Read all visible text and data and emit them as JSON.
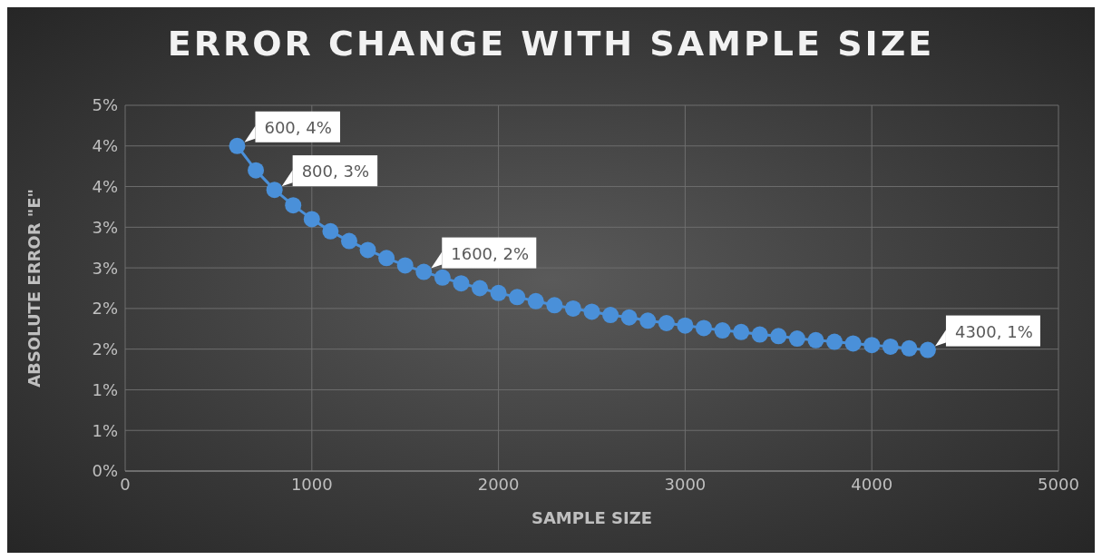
{
  "chart_data": {
    "type": "line",
    "title": "ERROR CHANGE WITH SAMPLE SIZE",
    "xlabel": "SAMPLE SIZE",
    "ylabel": "ABSOLUTE ERROR \"E\"",
    "x": [
      600,
      700,
      800,
      900,
      1000,
      1100,
      1200,
      1300,
      1400,
      1500,
      1600,
      1700,
      1800,
      1900,
      2000,
      2100,
      2200,
      2300,
      2400,
      2500,
      2600,
      2700,
      2800,
      2900,
      3000,
      3100,
      3200,
      3300,
      3400,
      3500,
      3600,
      3700,
      3800,
      3900,
      4000,
      4100,
      4200,
      4300
    ],
    "series": [
      {
        "color": "#4a90d9",
        "values": [
          4.0,
          3.7,
          3.46,
          3.27,
          3.1,
          2.95,
          2.83,
          2.72,
          2.62,
          2.53,
          2.45,
          2.38,
          2.31,
          2.25,
          2.19,
          2.14,
          2.09,
          2.04,
          2.0,
          1.96,
          1.92,
          1.89,
          1.85,
          1.82,
          1.79,
          1.76,
          1.73,
          1.71,
          1.68,
          1.66,
          1.63,
          1.61,
          1.59,
          1.57,
          1.55,
          1.53,
          1.51,
          1.49
        ],
        "value_labels": [
          "600, 4%",
          null,
          "800, 3%",
          null,
          null,
          null,
          null,
          null,
          null,
          null,
          "1600, 2%",
          null,
          null,
          null,
          null,
          null,
          null,
          null,
          null,
          null,
          null,
          null,
          null,
          null,
          null,
          null,
          null,
          null,
          null,
          null,
          null,
          null,
          null,
          null,
          null,
          null,
          null,
          "4300, 1%"
        ]
      }
    ],
    "xlim": [
      0,
      5000
    ],
    "xticks": [
      0,
      1000,
      2000,
      3000,
      4000,
      5000
    ],
    "ylim": [
      0,
      4.5
    ],
    "yticks": [
      {
        "value": 0,
        "label": "0%"
      },
      {
        "value": 0.5,
        "label": "1%"
      },
      {
        "value": 1,
        "label": "1%"
      },
      {
        "value": 1.5,
        "label": "2%"
      },
      {
        "value": 2,
        "label": "2%"
      },
      {
        "value": 2.5,
        "label": "3%"
      },
      {
        "value": 3,
        "label": "3%"
      },
      {
        "value": 3.5,
        "label": "4%"
      },
      {
        "value": 4,
        "label": "4%"
      },
      {
        "value": 4.5,
        "label": "5%"
      }
    ],
    "grid": true,
    "legend": false,
    "marker": "circle",
    "line_style": "solid"
  }
}
